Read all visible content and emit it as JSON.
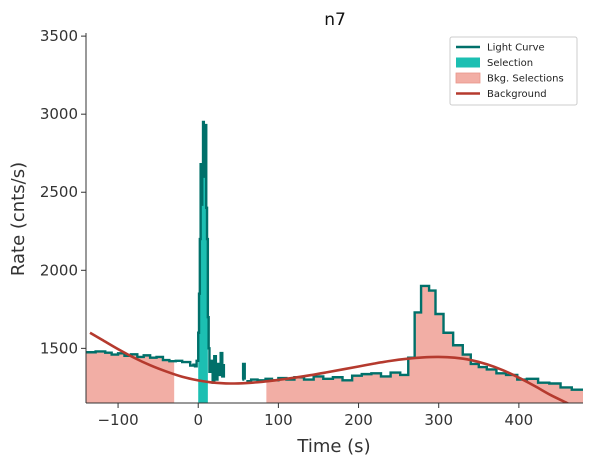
{
  "chart_data": {
    "type": "line",
    "title": "n7",
    "xlabel": "Time (s)",
    "ylabel": "Rate (cnts/s)",
    "xlim": [
      -140,
      480
    ],
    "ylim": [
      1150,
      3520
    ],
    "xticks": [
      -100,
      0,
      100,
      200,
      300,
      400
    ],
    "yticks": [
      1500,
      2000,
      2500,
      3000,
      3500
    ],
    "grid": false,
    "legend_position": "top-right",
    "legend": [
      {
        "label": "Light Curve",
        "kind": "line",
        "color": "#00706a"
      },
      {
        "label": "Selection",
        "kind": "patch",
        "color": "#1cbfb2"
      },
      {
        "label": "Bkg. Selections",
        "kind": "patch",
        "color": "#f2aea5"
      },
      {
        "label": "Background",
        "kind": "line",
        "color": "#b53a2e"
      }
    ],
    "light_curve": {
      "name": "Light Curve",
      "color": "#00706a",
      "segments": [
        [
          [
            -140,
            1475
          ],
          [
            -128,
            1480
          ],
          [
            -116,
            1472
          ],
          [
            -108,
            1460
          ],
          [
            -100,
            1468
          ],
          [
            -92,
            1452
          ],
          [
            -84,
            1462
          ],
          [
            -76,
            1445
          ],
          [
            -68,
            1455
          ],
          [
            -60,
            1440
          ],
          [
            -52,
            1445
          ],
          [
            -44,
            1425
          ],
          [
            -36,
            1418
          ],
          [
            -28,
            1420
          ],
          [
            -20,
            1412
          ],
          [
            -10,
            1390
          ],
          [
            -6,
            1395
          ],
          [
            -4,
            1385
          ],
          [
            -2,
            1420
          ],
          [
            0,
            1600
          ],
          [
            1,
            1850
          ],
          [
            2,
            2200
          ],
          [
            3,
            2680
          ],
          [
            4,
            2420
          ],
          [
            5,
            2650
          ],
          [
            6,
            2950
          ],
          [
            7,
            2900
          ],
          [
            8,
            2600
          ],
          [
            9,
            2930
          ],
          [
            10,
            2400
          ],
          [
            11,
            2200
          ],
          [
            12,
            1700
          ],
          [
            13,
            1500
          ],
          [
            14,
            1350
          ],
          [
            16,
            1420
          ],
          [
            18,
            1280
          ],
          [
            20,
            1450
          ],
          [
            22,
            1300
          ],
          [
            24,
            1400
          ],
          [
            26,
            1330
          ],
          [
            28,
            1470
          ],
          [
            30,
            1320
          ],
          [
            32,
            1400
          ]
        ],
        [
          [
            55,
            1300
          ],
          [
            56,
            1400
          ],
          [
            58,
            1300
          ]
        ],
        [
          [
            60,
            1290
          ],
          [
            66,
            1300
          ],
          [
            74,
            1295
          ],
          [
            84,
            1305
          ],
          [
            92,
            1295
          ],
          [
            100,
            1310
          ],
          [
            110,
            1300
          ],
          [
            120,
            1315
          ],
          [
            132,
            1300
          ],
          [
            144,
            1320
          ],
          [
            156,
            1305
          ],
          [
            168,
            1315
          ],
          [
            180,
            1295
          ],
          [
            192,
            1325
          ],
          [
            204,
            1335
          ],
          [
            216,
            1340
          ],
          [
            228,
            1320
          ],
          [
            240,
            1345
          ],
          [
            252,
            1330
          ],
          [
            262,
            1440
          ],
          [
            270,
            1730
          ],
          [
            278,
            1900
          ],
          [
            288,
            1870
          ],
          [
            296,
            1720
          ],
          [
            306,
            1600
          ],
          [
            318,
            1520
          ],
          [
            330,
            1460
          ],
          [
            340,
            1400
          ],
          [
            350,
            1380
          ],
          [
            360,
            1365
          ],
          [
            372,
            1340
          ],
          [
            384,
            1330
          ],
          [
            398,
            1300
          ],
          [
            410,
            1305
          ],
          [
            424,
            1280
          ],
          [
            438,
            1275
          ],
          [
            452,
            1250
          ],
          [
            466,
            1235
          ],
          [
            480,
            1230
          ]
        ]
      ]
    },
    "selection": {
      "name": "Selection",
      "color": "#1cbfb2",
      "x_range": [
        0,
        12
      ]
    },
    "bkg_selections": {
      "name": "Bkg. Selections",
      "color": "#f2aea5",
      "ranges": [
        [
          -140,
          -30
        ],
        [
          85,
          480
        ]
      ]
    },
    "background": {
      "name": "Background",
      "color": "#b53a2e",
      "x": [
        -135,
        -120,
        -100,
        -80,
        -60,
        -40,
        -20,
        0,
        20,
        40,
        60,
        80,
        100,
        120,
        140,
        160,
        180,
        200,
        220,
        240,
        260,
        280,
        300,
        320,
        340,
        360,
        380,
        400,
        420,
        440,
        460,
        470
      ],
      "y": [
        1600,
        1555,
        1495,
        1440,
        1392,
        1352,
        1318,
        1295,
        1280,
        1275,
        1278,
        1286,
        1298,
        1312,
        1328,
        1346,
        1365,
        1384,
        1403,
        1420,
        1433,
        1442,
        1445,
        1440,
        1425,
        1398,
        1360,
        1312,
        1258,
        1200,
        1150,
        1120
      ]
    }
  }
}
